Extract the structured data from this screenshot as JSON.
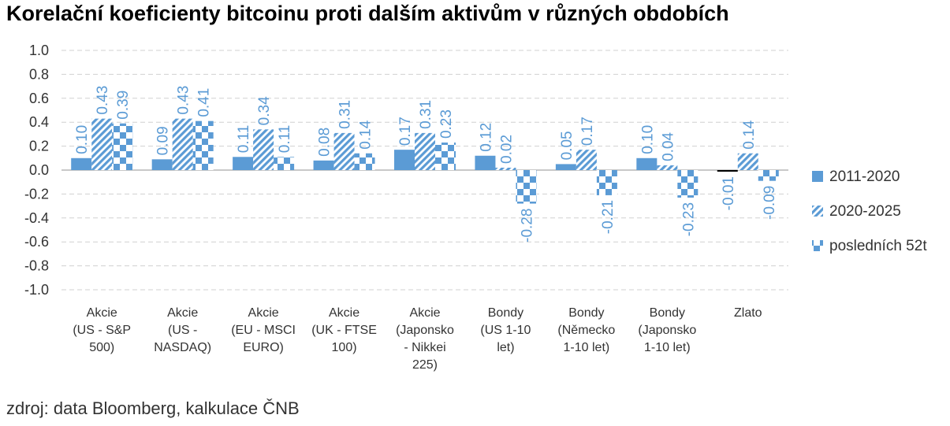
{
  "chart_data": {
    "type": "bar",
    "title": "Korelační koeficienty bitcoinu proti dalším aktivům v různých obdobích",
    "source": "zdroj: data Bloomberg, kalkulace ČNB",
    "categories": [
      [
        "Akcie",
        "(US - S&P",
        "500)"
      ],
      [
        "Akcie",
        "(US -",
        "NASDAQ)"
      ],
      [
        "Akcie",
        "(EU - MSCI",
        "EURO)"
      ],
      [
        "Akcie",
        "(UK - FTSE",
        "100)"
      ],
      [
        "Akcie",
        "(Japonsko",
        "- Nikkei",
        "225)"
      ],
      [
        "Bondy",
        "(US 1-10",
        "let)"
      ],
      [
        "Bondy",
        "(Německo",
        "1-10 let)"
      ],
      [
        "Bondy",
        "(Japonsko",
        "1-10 let)"
      ],
      [
        "Zlato"
      ]
    ],
    "series": [
      {
        "name": "2011-2020",
        "pattern": "solid",
        "values": [
          0.1,
          0.09,
          0.11,
          0.08,
          0.17,
          0.12,
          0.05,
          0.1,
          -0.01
        ],
        "labels": [
          "0.10",
          "0.09",
          "0.11",
          "0.08",
          "0.17",
          "0.12",
          "0.05",
          "0.10",
          "-0.01"
        ]
      },
      {
        "name": "2020-2025",
        "pattern": "stripes",
        "values": [
          0.43,
          0.43,
          0.34,
          0.31,
          0.31,
          0.02,
          0.17,
          0.04,
          0.14
        ],
        "labels": [
          "0.43",
          "0.43",
          "0.34",
          "0.31",
          "0.31",
          "0.02",
          "0.17",
          "0.04",
          "0.14"
        ]
      },
      {
        "name": "posledních 52t",
        "pattern": "checker",
        "values": [
          0.39,
          0.41,
          0.11,
          0.14,
          0.23,
          -0.28,
          -0.21,
          -0.23,
          -0.09
        ],
        "labels": [
          "0.39",
          "0.41",
          "0.11",
          "0.14",
          "0.23",
          "-0.28",
          "-0.21",
          "-0.23",
          "-0.09"
        ]
      }
    ],
    "yticks": [
      "1.0",
      "0.8",
      "0.6",
      "0.4",
      "0.2",
      "0.0",
      "-0.2",
      "-0.4",
      "-0.6",
      "-0.8",
      "-1.0"
    ],
    "ylim": [
      -1.0,
      1.0
    ],
    "grid": true,
    "legend": "right",
    "colors": {
      "bar": "#5b9bd5",
      "label": "#5b9bd5",
      "grid": "#d0d0d0",
      "axis": "#333333"
    }
  }
}
